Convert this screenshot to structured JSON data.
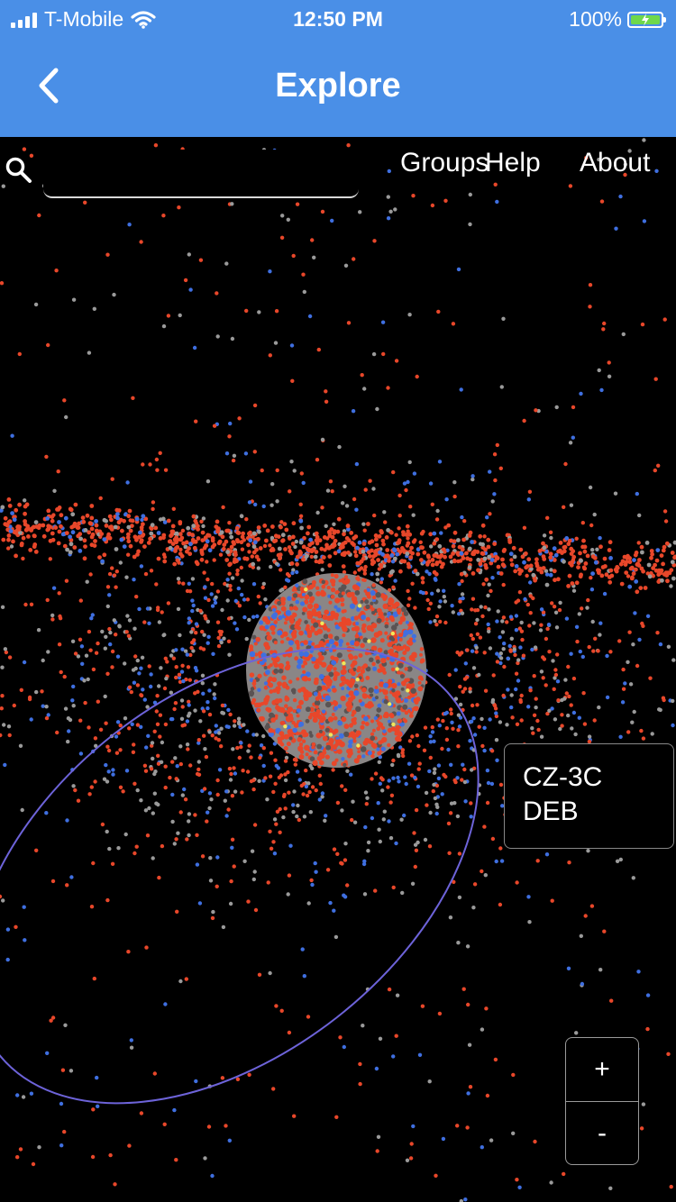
{
  "status_bar": {
    "carrier": "T-Mobile",
    "time": "12:50 PM",
    "battery": "100%",
    "icons": [
      "signal-icon",
      "wifi-icon",
      "battery-charging-icon"
    ]
  },
  "nav": {
    "title": "Explore",
    "back_icon": "chevron-left-icon"
  },
  "toolbar": {
    "search_icon": "search-icon",
    "search_value": "",
    "menu": [
      "Groups",
      "Help",
      "About"
    ]
  },
  "selected_object": {
    "name_line1": "CZ-3C",
    "name_line2": "DEB"
  },
  "zoom": {
    "in_label": "+",
    "out_label": "-"
  },
  "colors": {
    "header": "#4a8fe7",
    "debris": "#e8472a",
    "satellite": "#3f6fe0",
    "rocket_body": "#9a9a9a",
    "orbit": "#6d63d9",
    "background": "#000000"
  }
}
